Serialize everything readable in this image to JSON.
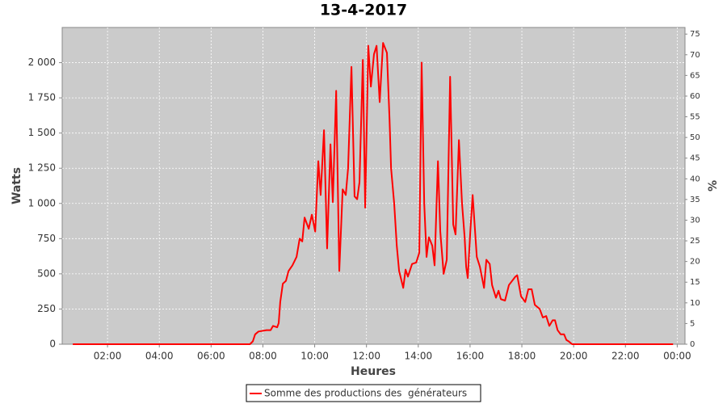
{
  "chart_data": {
    "type": "line",
    "title": "13-4-2017",
    "x_label": "Heures",
    "y_label": "Watts",
    "y2_label": "%",
    "x": [
      0.66,
      7.5,
      7.61,
      7.7,
      7.83,
      8.14,
      8.3,
      8.39,
      8.55,
      8.61,
      8.67,
      8.77,
      8.89,
      8.99,
      9.14,
      9.3,
      9.42,
      9.52,
      9.61,
      9.77,
      9.89,
      10.02,
      10.14,
      10.23,
      10.36,
      10.48,
      10.61,
      10.7,
      10.83,
      10.95,
      11.08,
      11.2,
      11.29,
      11.42,
      11.54,
      11.64,
      11.73,
      11.86,
      11.95,
      12.07,
      12.17,
      12.29,
      12.39,
      12.51,
      12.64,
      12.79,
      12.89,
      12.95,
      13.07,
      13.17,
      13.26,
      13.42,
      13.51,
      13.6,
      13.76,
      13.92,
      14.04,
      14.13,
      14.23,
      14.32,
      14.41,
      14.54,
      14.63,
      14.76,
      14.85,
      14.98,
      15.1,
      15.23,
      15.35,
      15.44,
      15.57,
      15.69,
      15.79,
      15.85,
      15.91,
      16.01,
      16.1,
      16.26,
      16.38,
      16.54,
      16.63,
      16.76,
      16.85,
      17.0,
      17.1,
      17.19,
      17.35,
      17.5,
      17.75,
      17.82,
      17.97,
      18.13,
      18.25,
      18.38,
      18.5,
      18.69,
      18.81,
      18.94,
      19.06,
      19.19,
      19.28,
      19.38,
      19.5,
      19.63,
      19.72,
      19.81,
      19.94,
      23.84
    ],
    "series": [
      {
        "name": "Somme des productions des  générateurs",
        "color": "#ff0000",
        "values": [
          0,
          0,
          20,
          70,
          90,
          100,
          100,
          130,
          120,
          150,
          300,
          430,
          450,
          520,
          560,
          620,
          750,
          730,
          900,
          820,
          920,
          800,
          1300,
          1060,
          1520,
          680,
          1420,
          1010,
          1800,
          520,
          1100,
          1060,
          1250,
          1970,
          1050,
          1030,
          1150,
          2020,
          970,
          2120,
          1830,
          2060,
          2120,
          1720,
          2140,
          2070,
          1600,
          1250,
          1000,
          700,
          520,
          400,
          530,
          480,
          570,
          580,
          650,
          2000,
          1000,
          620,
          760,
          700,
          560,
          1300,
          800,
          500,
          600,
          1900,
          850,
          780,
          1450,
          1000,
          760,
          550,
          470,
          800,
          1060,
          620,
          550,
          400,
          600,
          570,
          420,
          330,
          380,
          320,
          310,
          420,
          480,
          490,
          340,
          300,
          390,
          390,
          280,
          250,
          190,
          200,
          130,
          170,
          170,
          100,
          70,
          70,
          30,
          20,
          0,
          0
        ]
      }
    ],
    "xlim": [
      0.25,
      24.3
    ],
    "xticks": [
      {
        "value": 2,
        "label": "02:00"
      },
      {
        "value": 4,
        "label": "04:00"
      },
      {
        "value": 6,
        "label": "06:00"
      },
      {
        "value": 8,
        "label": "08:00"
      },
      {
        "value": 10,
        "label": "10:00"
      },
      {
        "value": 12,
        "label": "12:00"
      },
      {
        "value": 14,
        "label": "14:00"
      },
      {
        "value": 16,
        "label": "16:00"
      },
      {
        "value": 18,
        "label": "18:00"
      },
      {
        "value": 20,
        "label": "20:00"
      },
      {
        "value": 22,
        "label": "22:00"
      },
      {
        "value": 24,
        "label": "00:00"
      }
    ],
    "ylim": [
      0,
      2250
    ],
    "yticks": [
      0,
      250,
      500,
      750,
      {
        "value": 1000,
        "label": "1 000"
      },
      {
        "value": 1250,
        "label": "1 250"
      },
      {
        "value": 1500,
        "label": "1 500"
      },
      {
        "value": 1750,
        "label": "1 750"
      },
      {
        "value": 2000,
        "label": "2 000"
      }
    ],
    "y2lim": [
      0,
      76.6
    ],
    "y2ticks": [
      0,
      5,
      10,
      15,
      20,
      25,
      30,
      35,
      40,
      45,
      50,
      55,
      60,
      65,
      70,
      75
    ],
    "grid": true
  }
}
